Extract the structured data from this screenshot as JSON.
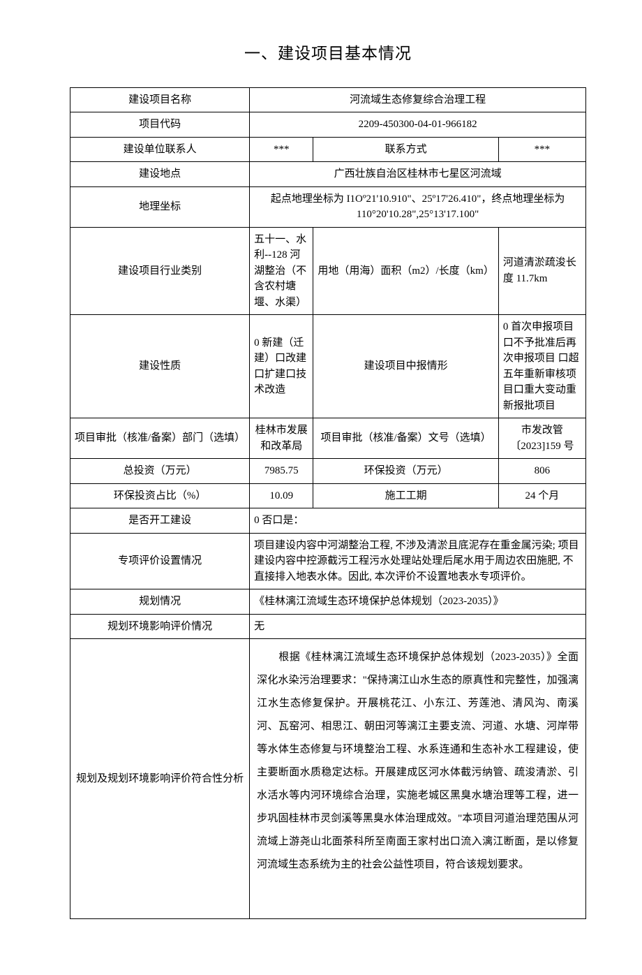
{
  "heading": "一、建设项目基本情况",
  "rows": {
    "projectName": {
      "label": "建设项目名称",
      "value": "河流域生态修复综合治理工程"
    },
    "projectCode": {
      "label": "项目代码",
      "value": "2209-450300-04-01-966182"
    },
    "contactPerson": {
      "label": "建设单位联系人",
      "value": "***"
    },
    "contactInfo": {
      "label": "联系方式",
      "value": "***"
    },
    "location": {
      "label": "建设地点",
      "value": "广西壮族自治区桂林市七星区河流域"
    },
    "coords": {
      "label": "地理坐标",
      "value": "起点地理坐标为 I1Oº21'10.910\"、25º17'26.410\"，终点地理坐标为 110°20'10.28\",25°13'17.100\""
    },
    "industry": {
      "label": "建设项目行业类别",
      "value": "五十一、水利--128 河湖整治（不含农村塘堰、水渠）"
    },
    "landArea": {
      "label": "用地（用海）面积（m2）/长度（km）",
      "value": "河道清淤疏浚长度 11.7km"
    },
    "nature": {
      "label": "建设性质",
      "value": "0 新建（迁建）口改建 口扩建口技术改造"
    },
    "reportType": {
      "label": "建设项目中报情形",
      "value": "0 首次申报项目\n口不予批准后再次申报项目 口超五年重新审核项目口重大变动重新报批项目"
    },
    "approvalDept": {
      "label": "项目审批（核准/备案）部门（选填）",
      "value": "桂林市发展和改革局"
    },
    "approvalDoc": {
      "label": "项目审批（核准/备案）文号（选填）",
      "value": "市发改管〔2023]159 号"
    },
    "totalInvest": {
      "label": "总投资（万元）",
      "value": "7985.75"
    },
    "envInvest": {
      "label": "环保投资（万元）",
      "value": "806"
    },
    "envRatio": {
      "label": "环保投资占比（%）",
      "value": "10.09"
    },
    "period": {
      "label": "施工工期",
      "value": "24 个月"
    },
    "started": {
      "label": "是否开工建设",
      "value": "0 否口是："
    },
    "specialEval": {
      "label": "专项评价设置情况",
      "value": "项目建设内容中河湖整治工程, 不涉及清淤且底泥存在重金属污染; 项目建设内容中控源截污工程污水处理站处理后尾水用于周边农田施肥, 不直接排入地表水体。因此, 本次评价不设置地表水专项评价。"
    },
    "planning": {
      "label": "规划情况",
      "value": "《桂林漓江流域生态环境保护总体规划（2023-2035）》"
    },
    "planEnvEval": {
      "label": "规划环境影响评价情况",
      "value": "无"
    },
    "compliance": {
      "label": "规划及规划环境影响评价符合性分析",
      "value": "　　根据《桂林漓江流域生态环境保护总体规划（2023-2035）》全面深化水染污治理要求：\"保持漓江山水生态的原真性和完整性，加强漓江水生态修复保护。开展桃花江、小东江、芳莲池、清风沟、南溪河、瓦窑河、相思江、朝田河等漓江主要支流、河道、水塘、河岸带等水体生态修复与环境整治工程、水系连通和生态补水工程建设，使主要断面水质稳定达标。开展建成区河水体截污纳管、疏浚清淤、引水活水等内河环境综合治理，实施老城区黑臭水塘治理等工程，进一步巩固桂林市灵剑溪等黑臭水体治理成效。\"本项目河道治理范围从河流域上游尧山北面茶科所至南面王家村出口流入漓江断面，是以修复河流域生态系统为主的社会公益性项目，符合该规划要求。"
    }
  }
}
